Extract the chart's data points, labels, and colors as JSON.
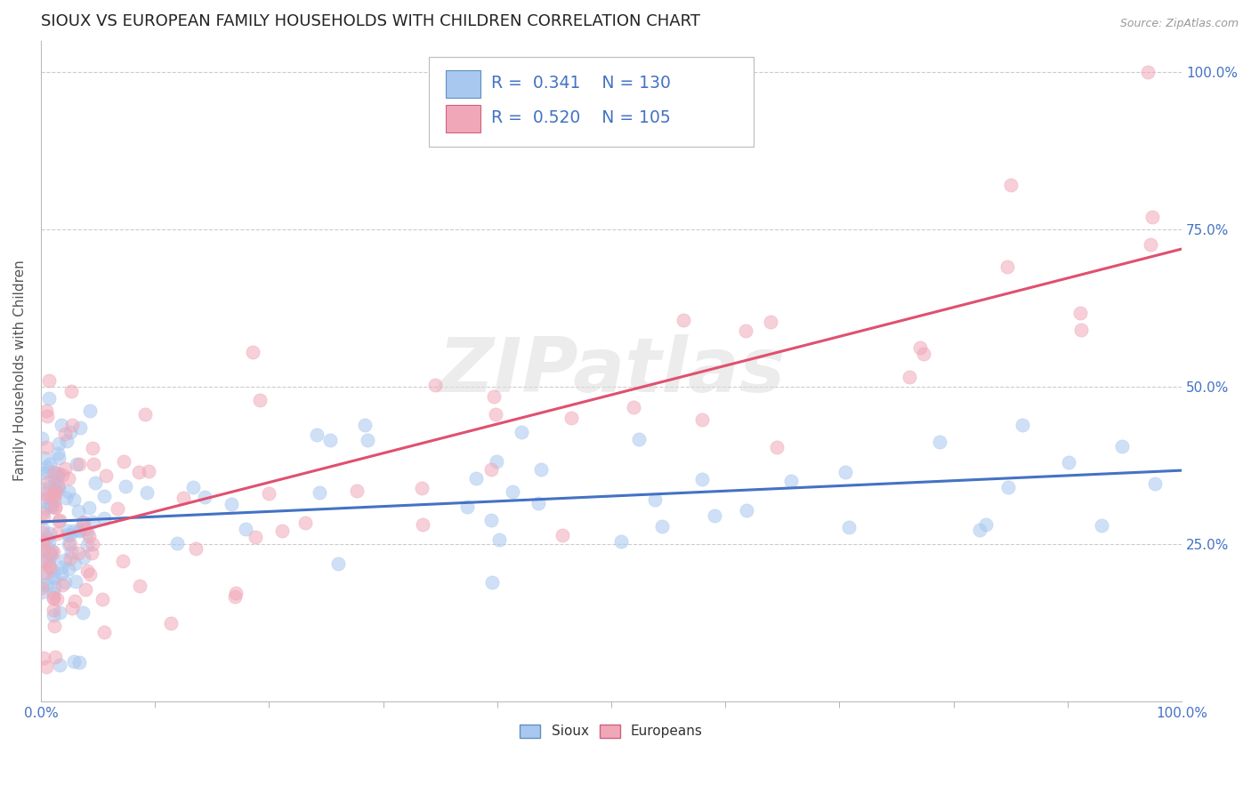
{
  "title": "SIOUX VS EUROPEAN FAMILY HOUSEHOLDS WITH CHILDREN CORRELATION CHART",
  "source": "Source: ZipAtlas.com",
  "ylabel": "Family Households with Children",
  "sioux_R": 0.341,
  "sioux_N": 130,
  "europeans_R": 0.52,
  "europeans_N": 105,
  "sioux_color": "#A8C8F0",
  "europeans_color": "#F0A8B8",
  "sioux_line_color": "#4472C4",
  "europeans_line_color": "#E05070",
  "background_color": "#FFFFFF",
  "title_fontsize": 13,
  "axis_label_fontsize": 11,
  "tick_fontsize": 11,
  "sioux_intercept": 0.295,
  "sioux_slope": 0.115,
  "europeans_intercept": 0.265,
  "europeans_slope": 0.395
}
